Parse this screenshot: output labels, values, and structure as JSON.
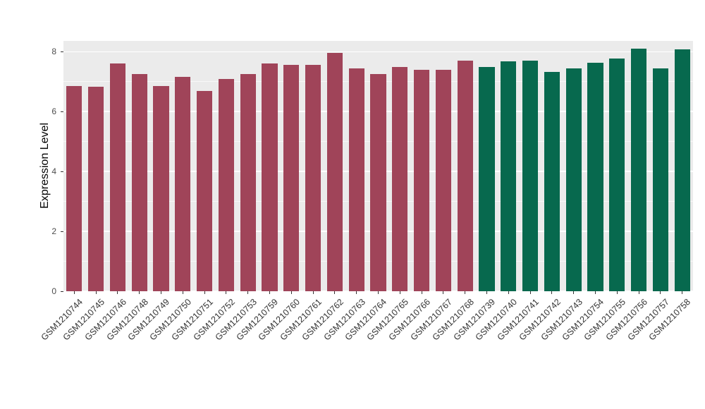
{
  "chart_data": {
    "type": "bar",
    "title": "",
    "xlabel": "",
    "ylabel": "Expression Level",
    "ylim": [
      0,
      8.36
    ],
    "yticks": [
      0,
      2,
      4,
      6,
      8
    ],
    "yticks_minor": [
      1,
      3,
      5,
      7
    ],
    "grid": true,
    "legend": "none",
    "panel_background": "#EBEBEB",
    "grid_color": "#FFFFFF",
    "group_colors": [
      "#A04459",
      "#07694E"
    ],
    "bar_groups": [
      0,
      0,
      0,
      0,
      0,
      0,
      0,
      0,
      0,
      0,
      0,
      0,
      0,
      0,
      0,
      0,
      0,
      0,
      0,
      1,
      1,
      1,
      1,
      1,
      1,
      1,
      1,
      1,
      1
    ],
    "categories": [
      "GSM1210744",
      "GSM1210745",
      "GSM1210746",
      "GSM1210748",
      "GSM1210749",
      "GSM1210750",
      "GSM1210751",
      "GSM1210752",
      "GSM1210753",
      "GSM1210759",
      "GSM1210760",
      "GSM1210761",
      "GSM1210762",
      "GSM1210763",
      "GSM1210764",
      "GSM1210765",
      "GSM1210766",
      "GSM1210767",
      "GSM1210768",
      "GSM1210739",
      "GSM1210740",
      "GSM1210741",
      "GSM1210742",
      "GSM1210743",
      "GSM1210754",
      "GSM1210755",
      "GSM1210756",
      "GSM1210757",
      "GSM1210758"
    ],
    "series": [
      {
        "name": "Expression Level",
        "values": [
          6.85,
          6.82,
          7.6,
          7.25,
          6.85,
          7.15,
          6.7,
          7.1,
          7.25,
          7.6,
          7.55,
          7.55,
          7.95,
          7.45,
          7.25,
          7.5,
          7.4,
          7.4,
          7.7,
          7.5,
          7.68,
          7.7,
          7.32,
          7.45,
          7.62,
          7.78,
          8.1,
          7.45,
          8.08
        ]
      }
    ]
  }
}
